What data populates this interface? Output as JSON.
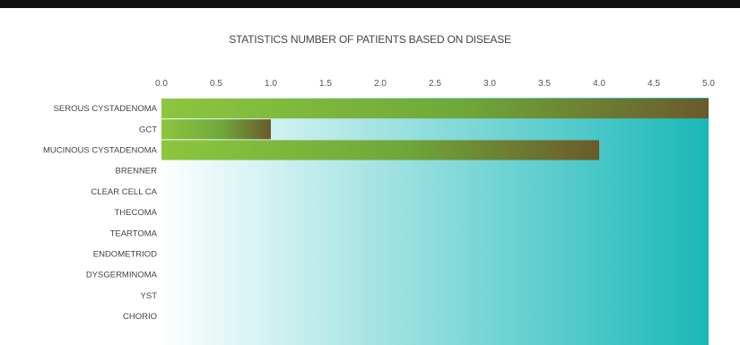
{
  "chart_data": {
    "type": "bar",
    "orientation": "horizontal",
    "title": "STATISTICS NUMBER OF PATIENTS BASED ON DISEASE",
    "xlabel": "",
    "ylabel": "",
    "xlim": [
      0,
      5
    ],
    "x_ticks": [
      "0.0",
      "0.5",
      "1.0",
      "1.5",
      "2.0",
      "2.5",
      "3.0",
      "3.5",
      "4.0",
      "4.5",
      "5.0"
    ],
    "x_axis_position": "top",
    "grid": false,
    "categories": [
      "SEROUS CYSTADENOMA",
      "GCT",
      "MUCINOUS CYSTADENOMA",
      "BRENNER",
      "CLEAR CELL CA",
      "THECOMA",
      "TEARTOMA",
      "ENDOMETRIOD",
      "DYSGERMINOMA",
      "YST",
      "CHORIO"
    ],
    "values": [
      5,
      1,
      4,
      0,
      0,
      0,
      0,
      0,
      0,
      0,
      0
    ],
    "colors": {
      "bar_start": "#8cc63f",
      "bar_mid": "#6fa83a",
      "bar_end": "#6b5a2c",
      "background_start": "#ffffff",
      "background_end": "#1ab8b8",
      "top_bar": "#111111"
    }
  }
}
